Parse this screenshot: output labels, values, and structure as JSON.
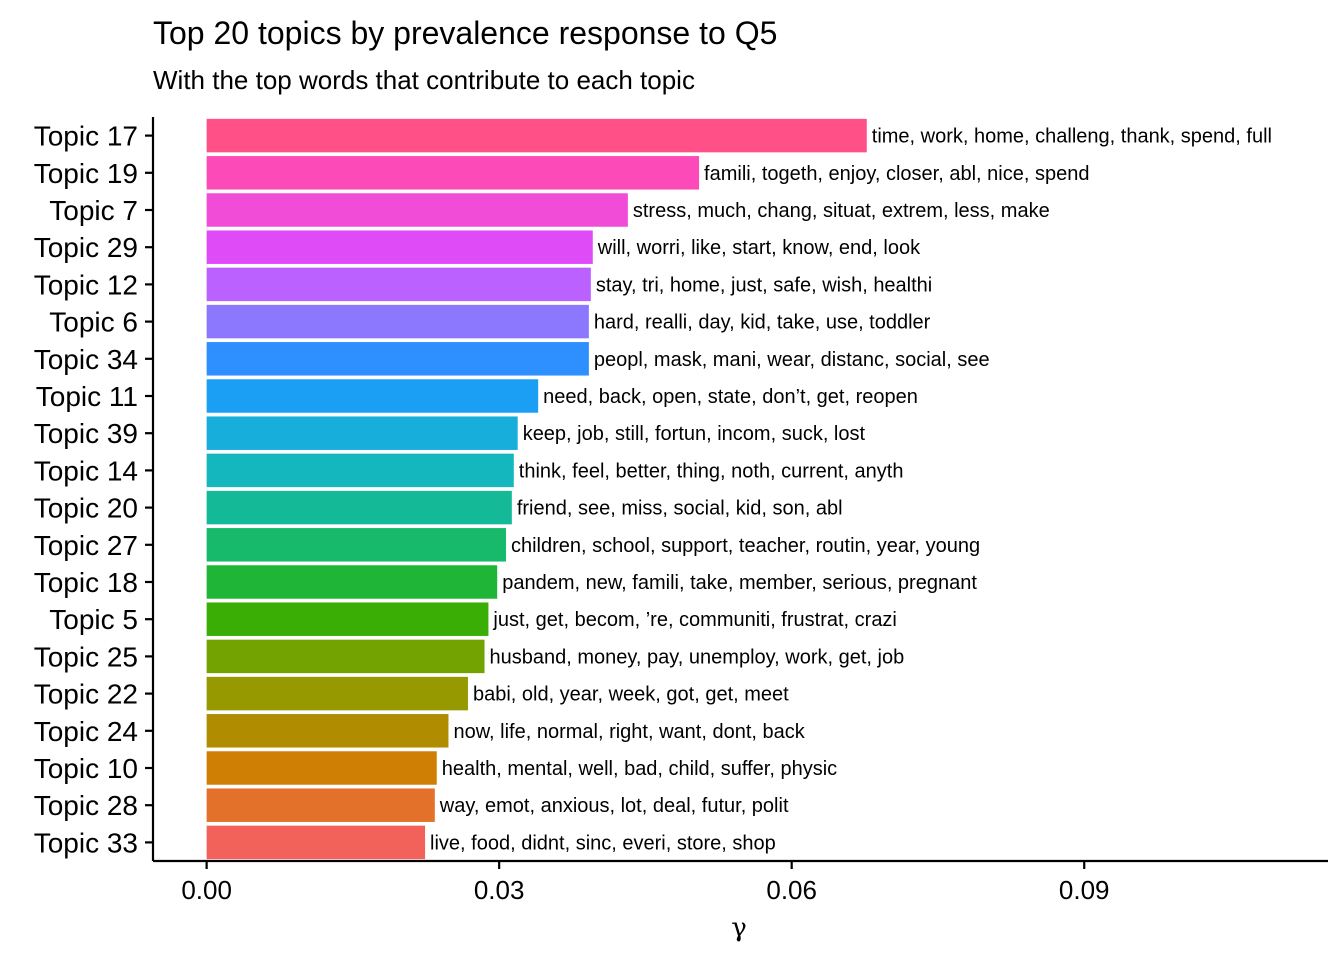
{
  "chart_data": {
    "type": "bar",
    "orientation": "horizontal",
    "title": "Top 20 topics by prevalence response to Q5",
    "subtitle": "With the top words that contribute to each topic",
    "xlabel": "γ",
    "ylabel": "",
    "xlim": [
      -0.0055,
      0.115
    ],
    "x_ticks": [
      "0.00",
      "0.03",
      "0.06",
      "0.09"
    ],
    "x_tick_values": [
      0,
      0.03,
      0.06,
      0.09
    ],
    "grid": false,
    "legend": "none",
    "categories": [
      "Topic 17",
      "Topic 19",
      "Topic 7",
      "Topic 29",
      "Topic 12",
      "Topic 6",
      "Topic 34",
      "Topic 11",
      "Topic 39",
      "Topic 14",
      "Topic 20",
      "Topic 27",
      "Topic 18",
      "Topic 5",
      "Topic 25",
      "Topic 22",
      "Topic 24",
      "Topic 10",
      "Topic 28",
      "Topic 33"
    ],
    "values": [
      0.0677,
      0.0505,
      0.0432,
      0.0396,
      0.0394,
      0.0392,
      0.0392,
      0.034,
      0.0319,
      0.0315,
      0.0313,
      0.0307,
      0.0298,
      0.0289,
      0.0285,
      0.0268,
      0.0248,
      0.0236,
      0.0234,
      0.0224
    ],
    "labels": [
      "time, work, home, challeng, thank, spend, full",
      "famili, togeth, enjoy, closer, abl, nice, spend",
      "stress, much, chang, situat, extrem, less, make",
      "will, worri, like, start, know, end, look",
      "stay, tri, home, just, safe, wish, healthi",
      "hard, realli, day, kid, take, use, toddler",
      "peopl, mask, mani, wear, distanc, social, see",
      "need, back, open, state, don’t, get, reopen",
      "keep, job, still, fortun, incom, suck, lost",
      "think, feel, better, thing, noth, current, anyth",
      "friend, see, miss, social, kid, son, abl",
      "children, school, support, teacher, routin, year, young",
      "pandem, new, famili, take, member, serious, pregnant",
      "just, get, becom, ’re, communiti, frustrat, crazi",
      "husband, money, pay, unemploy, work, get, job",
      "babi, old, year, week, got, get, meet",
      "now, life, normal, right, want, dont, back",
      "health, mental, well, bad, child, suffer, physic",
      "way, emot, anxious, lot, deal, futur, polit",
      "live, food, didnt, sinc, everi, store, shop"
    ],
    "colors": [
      "#FF5087",
      "#FC4AB8",
      "#F14CD8",
      "#DE4BF7",
      "#BB61FF",
      "#8C78FF",
      "#2E8FFF",
      "#1A9FF5",
      "#17AEDB",
      "#14B7BD",
      "#14BA98",
      "#17BA6B",
      "#1FB638",
      "#3BAE05",
      "#72A300",
      "#969900",
      "#B08C00",
      "#CF8004",
      "#E4712A",
      "#F2625B"
    ]
  }
}
